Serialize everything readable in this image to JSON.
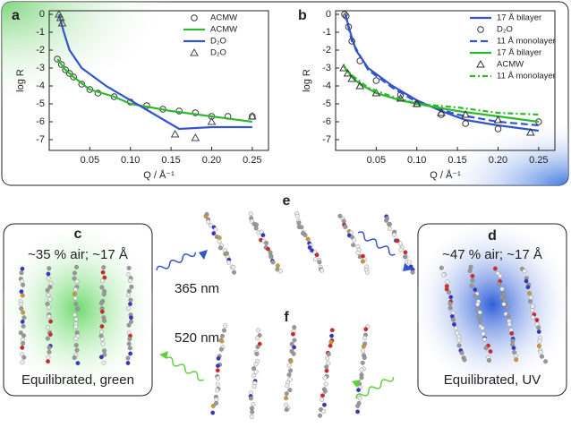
{
  "chart_data": [
    {
      "type": "line",
      "panel_label": "a",
      "xlabel": "Q / Å⁻¹",
      "ylabel": "log R",
      "legend": "upper right",
      "xlim": [
        0,
        0.27
      ],
      "ylim": [
        -7.6,
        0.2
      ],
      "xticks": [
        0.05,
        {
          "value": 0.1,
          "label": "0.10"
        },
        0.15,
        {
          "value": 0.2,
          "label": "0.20"
        },
        0.25
      ],
      "yticks": [
        0,
        -1,
        -2,
        -3,
        -4,
        -5,
        -6,
        -7
      ],
      "series": [
        {
          "name": "ACMW",
          "color": "#333333",
          "marker": "circle",
          "x": [
            0.01,
            0.015,
            0.02,
            0.025,
            0.03,
            0.04,
            0.05,
            0.06,
            0.08,
            0.1,
            0.12,
            0.14,
            0.16,
            0.18,
            0.2,
            0.22,
            0.25
          ],
          "values": [
            -2.5,
            -2.8,
            -3.1,
            -3.3,
            -3.5,
            -3.9,
            -4.2,
            -4.4,
            -4.6,
            -4.9,
            -5.1,
            -5.3,
            -5.4,
            -5.5,
            -5.7,
            -5.7,
            -5.7
          ]
        },
        {
          "name": "ACMW",
          "color": "#2db82d",
          "style": "solid",
          "x": [
            0.01,
            0.02,
            0.03,
            0.05,
            0.08,
            0.1,
            0.15,
            0.2,
            0.25
          ],
          "values": [
            -2.5,
            -3.1,
            -3.5,
            -4.2,
            -4.6,
            -5.0,
            -5.4,
            -5.7,
            -6.0
          ]
        },
        {
          "name": "D₂O",
          "color": "#3355cc",
          "style": "solid",
          "x": [
            0.012,
            0.018,
            0.025,
            0.04,
            0.07,
            0.1,
            0.13,
            0.16,
            0.2,
            0.25
          ],
          "values": [
            0,
            -1,
            -2,
            -3,
            -4,
            -4.8,
            -5.6,
            -6.4,
            -6.3,
            -6.3
          ]
        },
        {
          "name": "D₂O",
          "color": "#444444",
          "marker": "triangle",
          "x": [
            0.012,
            0.014,
            0.016,
            0.155,
            0.18,
            0.2,
            0.25
          ],
          "values": [
            0,
            -0.2,
            -0.5,
            -6.7,
            -6.9,
            -6.0,
            -5.7
          ]
        }
      ]
    },
    {
      "type": "line",
      "panel_label": "b",
      "xlabel": "Q / Å⁻¹",
      "ylabel": "log R",
      "legend": "upper right",
      "xlim": [
        0,
        0.27
      ],
      "ylim": [
        -7.6,
        0.2
      ],
      "xticks": [
        0.05,
        {
          "value": 0.1,
          "label": "0.10"
        },
        0.15,
        {
          "value": 0.2,
          "label": "0.20"
        },
        0.25
      ],
      "yticks": [
        0,
        -1,
        -2,
        -3,
        -4,
        -5,
        -6,
        -7
      ],
      "series": [
        {
          "name": "17 Å bilayer",
          "color": "#3355cc",
          "style": "solid",
          "x": [
            0.012,
            0.018,
            0.025,
            0.04,
            0.07,
            0.1,
            0.13,
            0.16,
            0.2,
            0.25
          ],
          "values": [
            0,
            -1,
            -2,
            -3,
            -4,
            -4.8,
            -5.4,
            -5.9,
            -6.2,
            -6.5
          ]
        },
        {
          "name": "D₂O",
          "color": "#333333",
          "marker": "circle",
          "x": [
            0.011,
            0.013,
            0.016,
            0.02,
            0.03,
            0.05,
            0.08,
            0.1,
            0.13,
            0.16,
            0.2,
            0.25
          ],
          "values": [
            0,
            -0.1,
            -0.7,
            -1.5,
            -2.6,
            -3.7,
            -4.5,
            -5.0,
            -5.6,
            -6.1,
            -6.4,
            -6.0
          ]
        },
        {
          "name": "11 Å monolayer",
          "color": "#3355cc",
          "style": "dash",
          "x": [
            0.012,
            0.02,
            0.04,
            0.07,
            0.1,
            0.15,
            0.2,
            0.25
          ],
          "values": [
            0,
            -1.5,
            -3.1,
            -4.1,
            -4.9,
            -5.6,
            -6.0,
            -6.2
          ]
        },
        {
          "name": "17 Å bilayer",
          "color": "#2db82d",
          "style": "solid",
          "x": [
            0.01,
            0.02,
            0.03,
            0.05,
            0.08,
            0.1,
            0.15,
            0.2,
            0.25
          ],
          "values": [
            -2.9,
            -3.5,
            -3.9,
            -4.4,
            -4.8,
            -5.0,
            -5.4,
            -5.7,
            -6.0
          ]
        },
        {
          "name": "ACMW",
          "color": "#333333",
          "marker": "triangle",
          "x": [
            0.01,
            0.015,
            0.02,
            0.03,
            0.05,
            0.08,
            0.1,
            0.13,
            0.16,
            0.2,
            0.24
          ],
          "values": [
            -3.0,
            -3.3,
            -3.6,
            -4.0,
            -4.4,
            -4.7,
            -5.0,
            -5.5,
            -5.6,
            -5.9,
            -6.6
          ]
        },
        {
          "name": "11 Å monolayer",
          "color": "#2db82d",
          "style": "dashdot",
          "x": [
            0.01,
            0.02,
            0.04,
            0.07,
            0.1,
            0.15,
            0.2,
            0.25
          ],
          "values": [
            -2.9,
            -3.4,
            -4.1,
            -4.6,
            -5.0,
            -5.2,
            -5.5,
            -5.6
          ]
        }
      ]
    }
  ],
  "diagram": {
    "panel_c": {
      "label": "c",
      "caption_top": "~35 % air; ~17 Å",
      "caption_bottom": "Equilibrated, green"
    },
    "panel_d": {
      "label": "d",
      "caption_top": "~47 % air; ~17 Å",
      "caption_bottom": "Equilibrated, UV"
    },
    "panel_e": {
      "label": "e",
      "wavelength": "365 nm"
    },
    "panel_f": {
      "label": "f",
      "wavelength": "520 nm"
    }
  }
}
